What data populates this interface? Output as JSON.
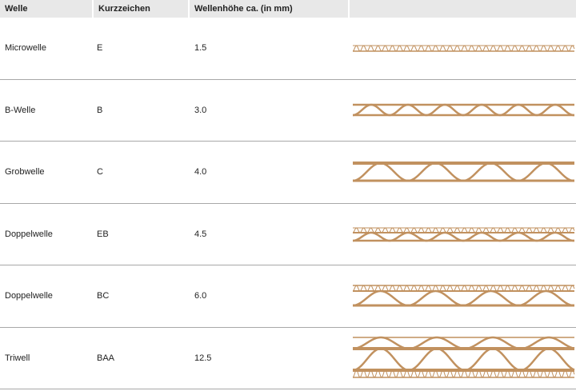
{
  "table": {
    "headers": [
      "Welle",
      "Kurzzeichen",
      "Wellenhöhe ca. (in mm)",
      ""
    ],
    "rows": [
      {
        "welle": "Microwelle",
        "kurzzeichen": "E",
        "hoehe": "1.5"
      },
      {
        "welle": "B-Welle",
        "kurzzeichen": "B",
        "hoehe": "3.0"
      },
      {
        "welle": "Grobwelle",
        "kurzzeichen": "C",
        "hoehe": "4.0"
      },
      {
        "welle": "Doppelwelle",
        "kurzzeichen": "EB",
        "hoehe": "4.5"
      },
      {
        "welle": "Doppelwelle",
        "kurzzeichen": "BC",
        "hoehe": "6.0"
      },
      {
        "welle": "Triwell",
        "kurzzeichen": "BAA",
        "hoehe": "12.5"
      }
    ]
  },
  "colors": {
    "cardboard": "#c1915f",
    "header_bg": "#e8e8e8",
    "divider": "#a8a8a8"
  }
}
